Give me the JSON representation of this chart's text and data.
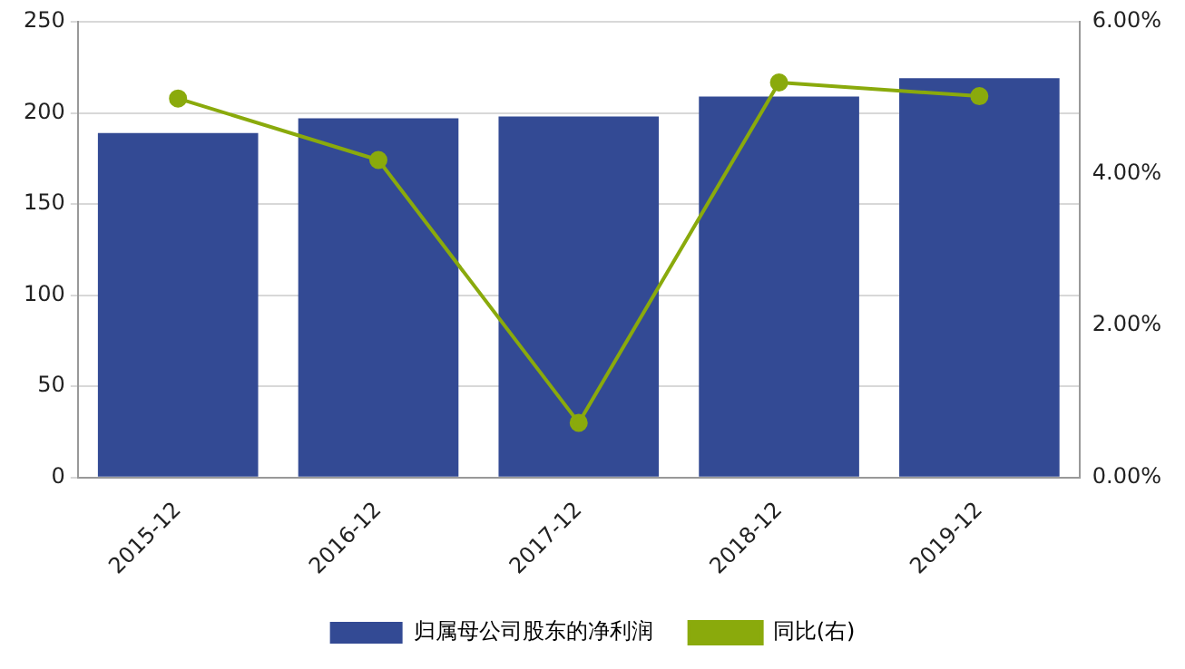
{
  "chart_data": {
    "type": "bar",
    "categories": [
      "2015-12",
      "2016-12",
      "2017-12",
      "2018-12",
      "2019-12"
    ],
    "series": [
      {
        "name": "归属母公司股东的净利润",
        "color": "#334a94",
        "values": [
          189,
          197,
          198,
          209,
          219
        ]
      },
      {
        "name": "同比(右)",
        "type": "line",
        "axis": "y2",
        "color": "#8aaa0c",
        "values": [
          4.99,
          4.18,
          0.72,
          5.2,
          5.02
        ]
      }
    ],
    "ylim": [
      0,
      250
    ],
    "yticks": [
      0,
      50,
      100,
      150,
      200,
      250
    ],
    "y2lim": [
      0,
      6
    ],
    "y2ticks": [
      {
        "value": 0,
        "label": "0.00%"
      },
      {
        "value": 2,
        "label": "2.00%"
      },
      {
        "value": 4,
        "label": "4.00%"
      },
      {
        "value": 6,
        "label": "6.00%"
      }
    ],
    "grid": "y",
    "legend": "bottom",
    "marker": "circle",
    "line_style": "solid"
  }
}
